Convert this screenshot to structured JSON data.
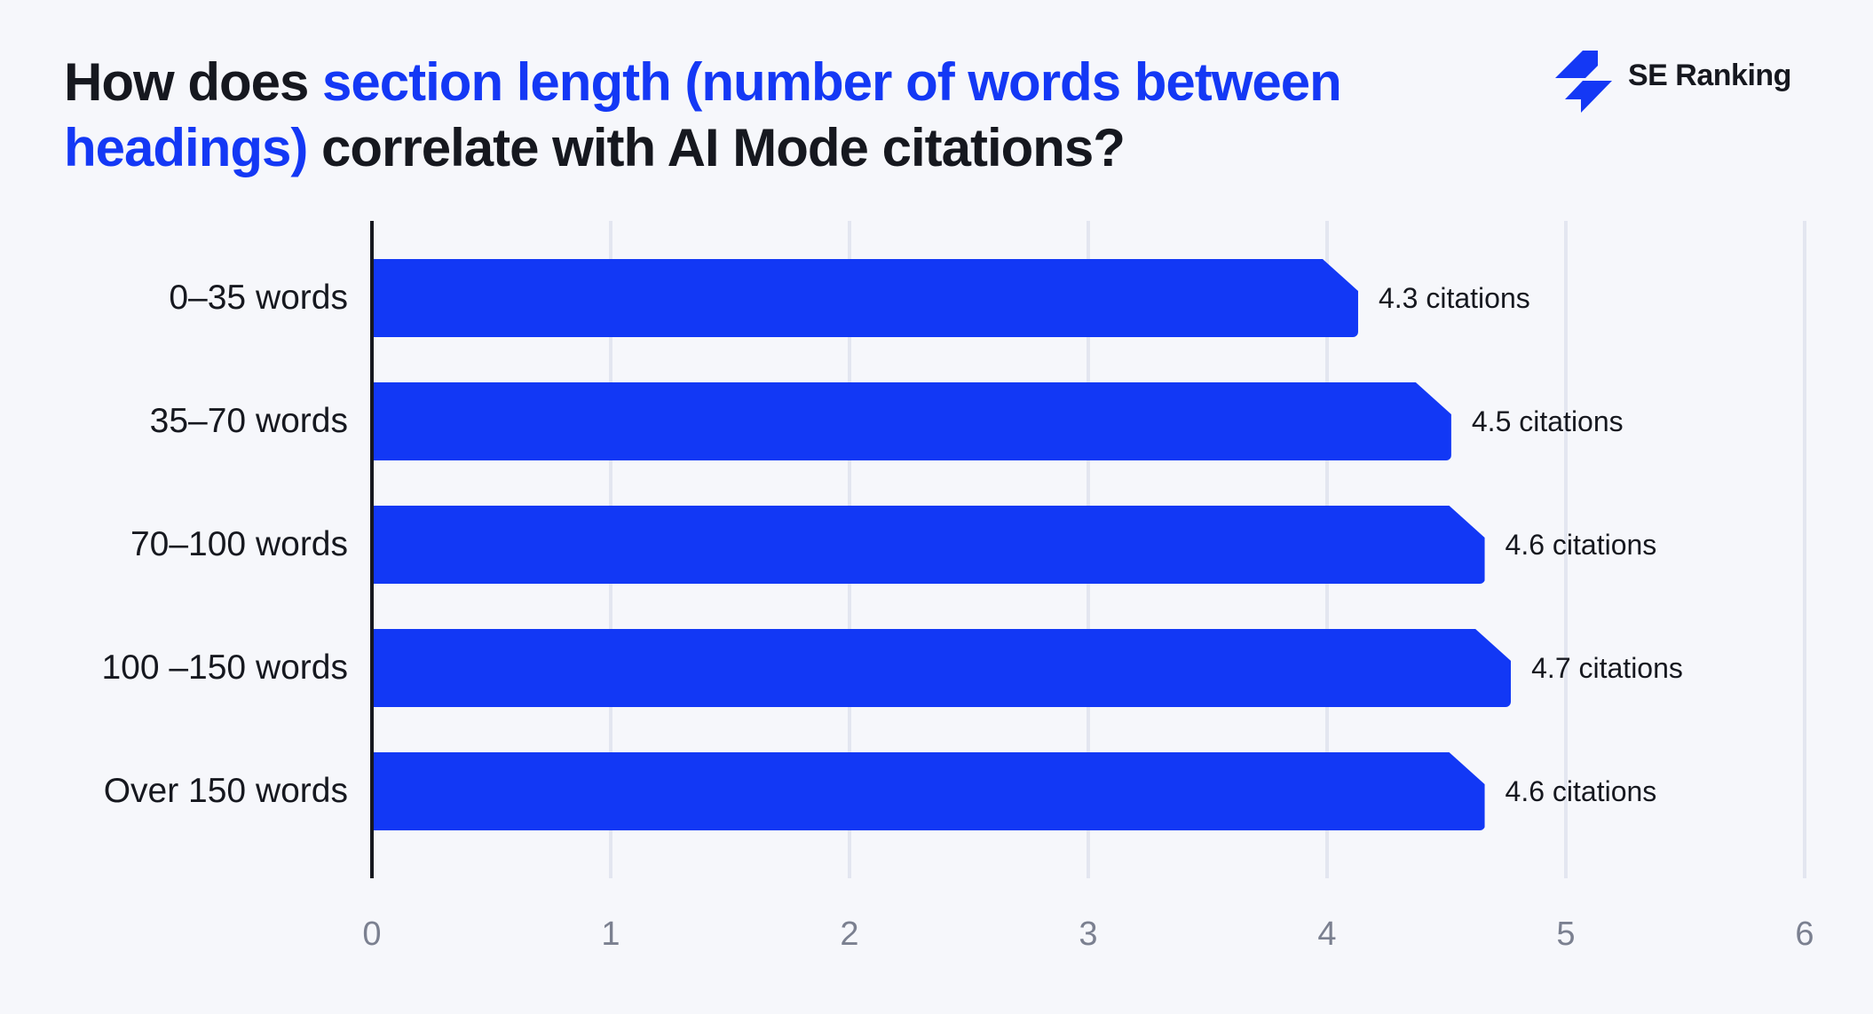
{
  "header": {
    "title_parts": [
      {
        "text": "How does ",
        "highlight": false,
        "line": 1
      },
      {
        "text": "section length (number of words between",
        "highlight": true,
        "line": 1
      },
      {
        "text": "headings)",
        "highlight": true,
        "line": 2
      },
      {
        "text": " correlate with AI Mode citations?",
        "highlight": false,
        "line": 2
      }
    ],
    "logo_text": "SE Ranking",
    "logo_icon": "se-ranking-bolt-icon"
  },
  "colors": {
    "background": "#f6f7fb",
    "accent": "#1438f5",
    "bar": "#1238f5",
    "text": "#16181f",
    "tick_text": "#7b8090",
    "gridline": "#e3e6f0"
  },
  "chart_data": {
    "type": "bar",
    "orientation": "horizontal",
    "title": "How does section length (number of words between headings) correlate with AI Mode citations?",
    "categories": [
      "0–35 words",
      "35–70 words",
      "70–100 words",
      "100 –150 words",
      "Over 150 words"
    ],
    "values": [
      4.3,
      4.5,
      4.6,
      4.7,
      4.6
    ],
    "value_labels": [
      "4.3 citations",
      "4.5 citations",
      "4.6 citations",
      "4.7 citations",
      "4.6 citations"
    ],
    "rendered_extent": [
      4.13,
      4.52,
      4.66,
      4.77,
      4.66
    ],
    "xlabel": "",
    "ylabel": "",
    "xlim": [
      0,
      6
    ],
    "xticks": [
      "0",
      "1",
      "2",
      "3",
      "4",
      "5",
      "6"
    ],
    "grid": true,
    "legend": null
  }
}
